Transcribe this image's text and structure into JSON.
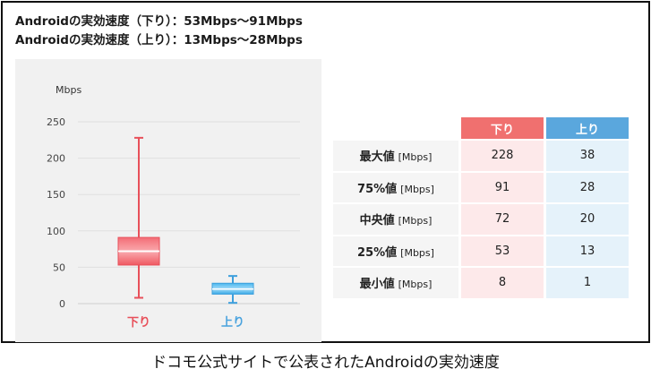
{
  "headline": {
    "down": "Androidの実効速度（下り）：53Mbps～91Mbps",
    "up": "Androidの実効速度（上り）：13Mbps～28Mbps"
  },
  "chart_data": {
    "type": "box",
    "ylabel": "Mbps",
    "ylim": [
      0,
      250
    ],
    "yticks": [
      0,
      50,
      100,
      150,
      200,
      250
    ],
    "grid": true,
    "categories": [
      "下り",
      "上り"
    ],
    "series": [
      {
        "name": "下り",
        "min": 8,
        "q1": 53,
        "median": 72,
        "q3": 91,
        "max": 228,
        "color": "#e8505a",
        "fill_color": "#f36d76",
        "label_color": "#e8505a"
      },
      {
        "name": "上り",
        "min": 1,
        "q1": 13,
        "median": 20,
        "q3": 28,
        "max": 38,
        "color": "#3d9fdc",
        "fill_color": "#49b7ee",
        "label_color": "#4aa3de"
      }
    ]
  },
  "table": {
    "headers": {
      "down": "下り",
      "up": "上り"
    },
    "rows": [
      {
        "stat": "最大値",
        "unit": "[Mbps]",
        "down": "228",
        "up": "38"
      },
      {
        "stat": "75%値",
        "unit": "[Mbps]",
        "down": "91",
        "up": "28"
      },
      {
        "stat": "中央値",
        "unit": "[Mbps]",
        "down": "72",
        "up": "20"
      },
      {
        "stat": "25%値",
        "unit": "[Mbps]",
        "down": "53",
        "up": "13"
      },
      {
        "stat": "最小値",
        "unit": "[Mbps]",
        "down": "8",
        "up": "1"
      }
    ]
  },
  "caption": "ドコモ公式サイトで公表されたAndroidの実効速度"
}
